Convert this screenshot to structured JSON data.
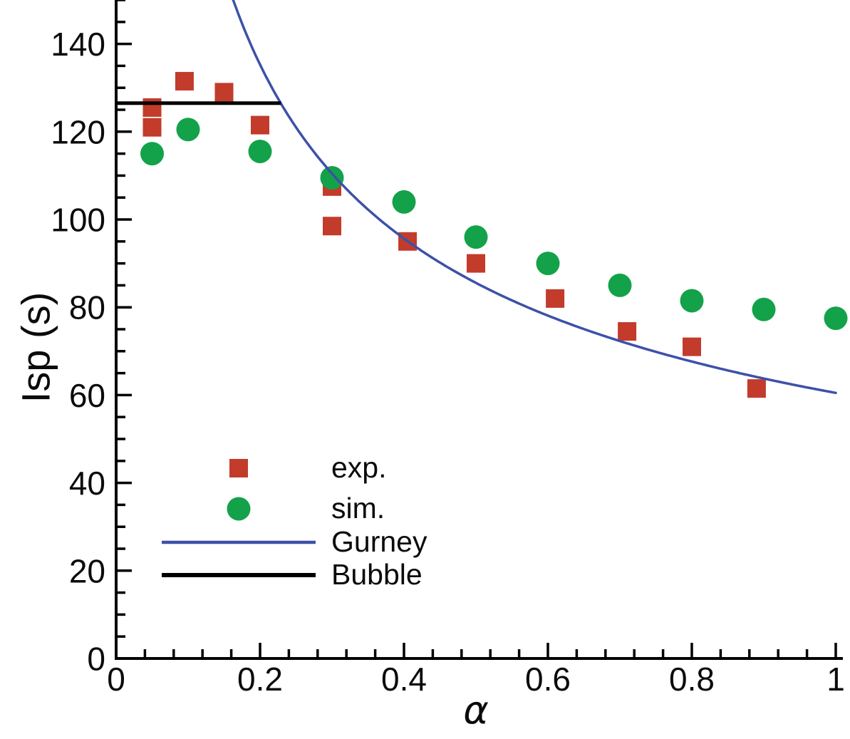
{
  "chart_data": {
    "type": "scatter",
    "title": "",
    "xlabel": "α",
    "ylabel": "Isp (s)",
    "xlim": [
      0,
      1
    ],
    "ylim": [
      0,
      150
    ],
    "grid": false,
    "x_major_ticks": [
      0,
      0.2,
      0.4,
      0.6,
      0.8,
      1
    ],
    "x_tick_labels": [
      "0",
      "0.2",
      "0.4",
      "0.6",
      "0.8",
      "1"
    ],
    "x_minor_tick_step": 0.04,
    "y_major_ticks": [
      0,
      20,
      40,
      60,
      80,
      100,
      120,
      140
    ],
    "y_tick_labels": [
      "0",
      "20",
      "40",
      "60",
      "80",
      "100",
      "120",
      "140"
    ],
    "y_minor_tick_step": 5,
    "legend_position": "inside-lower-left",
    "series": [
      {
        "name": "exp.",
        "type": "scatter",
        "marker": "square",
        "color": "#C23B2B",
        "points": [
          [
            0.05,
            125.5
          ],
          [
            0.05,
            121
          ],
          [
            0.095,
            131.5
          ],
          [
            0.15,
            129
          ],
          [
            0.2,
            121.5
          ],
          [
            0.3,
            107.5
          ],
          [
            0.3,
            98.5
          ],
          [
            0.405,
            95
          ],
          [
            0.5,
            90
          ],
          [
            0.61,
            82
          ],
          [
            0.71,
            74.5
          ],
          [
            0.8,
            71
          ],
          [
            0.89,
            61.5
          ]
        ]
      },
      {
        "name": "sim.",
        "type": "scatter",
        "marker": "circle",
        "color": "#13A24A",
        "points": [
          [
            0.05,
            115
          ],
          [
            0.1,
            120.5
          ],
          [
            0.2,
            115.5
          ],
          [
            0.3,
            109.5
          ],
          [
            0.4,
            104
          ],
          [
            0.5,
            96
          ],
          [
            0.6,
            90
          ],
          [
            0.7,
            85
          ],
          [
            0.8,
            81.5
          ],
          [
            0.9,
            79.5
          ],
          [
            1.0,
            77.5
          ]
        ]
      },
      {
        "name": "Gurney",
        "type": "curve",
        "color": "#3C51A8",
        "line_width": 3.5,
        "model": "Isp = C / sqrt(alpha)",
        "coefficient": 60.5,
        "alpha_range": [
          0.1627,
          1.0
        ]
      },
      {
        "name": "Bubble",
        "type": "hline",
        "color": "#000000",
        "line_width": 5,
        "value": 126.5,
        "alpha_range": [
          0,
          0.229
        ]
      }
    ]
  }
}
